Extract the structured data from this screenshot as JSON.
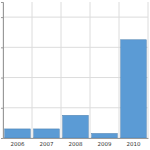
{
  "chart_data": {
    "type": "bar",
    "categories": [
      "2006",
      "2007",
      "2008",
      "2009",
      "2010"
    ],
    "values": [
      0.3,
      0.3,
      0.75,
      0.15,
      3.25
    ],
    "color": "#5b9bd5",
    "ylim": [
      0,
      4.5
    ],
    "yticks": [
      0,
      1,
      2,
      3,
      4
    ],
    "grid": true,
    "tick_labels": "x"
  }
}
